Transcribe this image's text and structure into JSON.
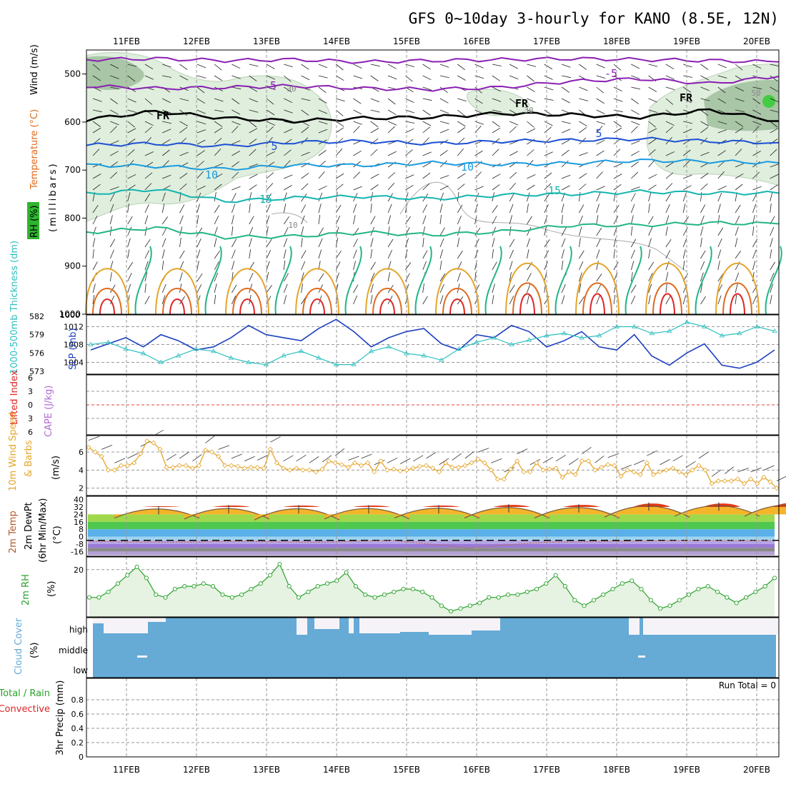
{
  "title": "GFS 0~10day 3-hourly for KANO (8.5E, 12N)",
  "chart_data": {
    "type": "meteogram",
    "days": [
      "11FEB",
      "12FEB",
      "13FEB",
      "14FEB",
      "15FEB",
      "16FEB",
      "17FEB",
      "18FEB",
      "19FEB",
      "20FEB"
    ],
    "colors": {
      "purple": "#8a1fb3",
      "black": "#000000",
      "blue": "#1c4fd6",
      "sky": "#1a9be0",
      "teal": "#13b5b0",
      "green": "#22b585",
      "orange": "#e5a52a",
      "darkorange": "#e06b1e",
      "red": "#e02424",
      "rhfill": "#dfeedd",
      "rhdark": "#a9c6a6",
      "cloud": "#66aad6",
      "speed": "#e5a52a",
      "thick": "#1c3fbf",
      "slp": "#2fbfbf",
      "rh2m": "#2aa12a"
    },
    "upper_panel": {
      "ylabel_wind": "Wind (m/s)",
      "ylabel_temp": "Temperature (°C)",
      "ylabel_rh": "RH (%)",
      "ylabel_mb": "(millibars)",
      "pressure_ticks": [
        500,
        600,
        700,
        800,
        900,
        1000
      ],
      "contour_labels": [
        {
          "text": "-5",
          "color": "purple"
        },
        {
          "text": "-5",
          "color": "purple"
        },
        {
          "text": "30",
          "color": "gray"
        },
        {
          "text": "FR",
          "color": "black"
        },
        {
          "text": "FR",
          "color": "black"
        },
        {
          "text": "FR",
          "color": "black"
        },
        {
          "text": "30",
          "color": "gray"
        },
        {
          "text": "50",
          "color": "gray"
        },
        {
          "text": "5",
          "color": "blue"
        },
        {
          "text": "5",
          "color": "blue"
        },
        {
          "text": "10",
          "color": "sky"
        },
        {
          "text": "10",
          "color": "sky"
        },
        {
          "text": "15",
          "color": "teal"
        },
        {
          "text": "15",
          "color": "teal"
        },
        {
          "text": "10",
          "color": "gray"
        }
      ],
      "isotherms": [
        {
          "name": "-5",
          "color": "purple",
          "mb": [
            470,
            468,
            472,
            470,
            475,
            472,
            470,
            468,
            470,
            472,
            475
          ]
        },
        {
          "name": "-5b",
          "color": "purple",
          "mb": [
            525,
            530,
            528,
            525,
            530,
            532,
            528,
            515,
            510,
            520,
            505
          ]
        },
        {
          "name": "FR",
          "color": "black",
          "mb": [
            595,
            578,
            592,
            598,
            592,
            590,
            582,
            585,
            590,
            575,
            598
          ]
        },
        {
          "name": "5",
          "color": "blue",
          "mb": [
            648,
            645,
            650,
            642,
            640,
            645,
            640,
            638,
            635,
            640,
            643
          ]
        },
        {
          "name": "10",
          "color": "sky",
          "mb": [
            690,
            692,
            698,
            690,
            690,
            685,
            688,
            686,
            680,
            682,
            685
          ]
        },
        {
          "name": "15",
          "color": "teal",
          "mb": [
            750,
            740,
            765,
            758,
            755,
            760,
            752,
            750,
            745,
            748,
            748
          ]
        },
        {
          "name": "20",
          "color": "green",
          "mb": [
            830,
            820,
            840,
            838,
            830,
            835,
            828,
            815,
            815,
            810,
            812
          ]
        }
      ]
    },
    "thickness_panel": {
      "ylabel_thick": "1000-500mb Thickness (dm)",
      "ylabel_slp": "SLP (mb)",
      "thick_ticks": [
        582,
        579,
        576,
        573
      ],
      "slp_ticks": [
        1012,
        1008,
        1004
      ],
      "thickness": [
        576.5,
        577.5,
        578.5,
        577,
        579,
        578,
        576.5,
        577,
        578.5,
        580.5,
        579,
        578.5,
        578,
        580,
        581.5,
        579.5,
        577,
        578.5,
        579.5,
        580,
        577.5,
        576.5,
        579,
        578.5,
        580.5,
        579.5,
        577,
        578,
        579.5,
        577,
        576.5,
        579,
        575.5,
        574,
        576,
        577.5,
        574,
        573.5,
        574.5,
        576.5
      ],
      "slp": [
        1008,
        1008.5,
        1007,
        1006,
        1004,
        1005.5,
        1007,
        1006.5,
        1005,
        1004,
        1003.5,
        1005.5,
        1006.5,
        1005,
        1003.5,
        1003.5,
        1006.5,
        1007.5,
        1006,
        1005.5,
        1004.5,
        1007,
        1008.5,
        1009.5,
        1008,
        1009,
        1010,
        1010.5,
        1009.5,
        1010,
        1012,
        1012,
        1010.5,
        1011,
        1013,
        1012,
        1010,
        1010.5,
        1012,
        1011
      ]
    },
    "cape_panel": {
      "ylabel_li": "Lifted Index",
      "ylabel_cape": "CAPE (J/kg)",
      "ticks": [
        "6",
        "3",
        "0",
        "3",
        "6"
      ]
    },
    "wind_panel": {
      "ylabel_speed": "10m Wind Speed",
      "ylabel_barbs": "& Barbs",
      "ylabel_units": "(m/s)",
      "ticks": [
        2,
        4,
        6
      ],
      "speed": [
        6.5,
        6.0,
        5.5,
        4.0,
        4.0,
        4.5,
        4.5,
        4.8,
        5.8,
        7.2,
        7.0,
        6.3,
        4.3,
        4.3,
        4.5,
        4.5,
        4.2,
        4.5,
        6.2,
        6.0,
        5.5,
        4.5,
        4.5,
        4.4,
        4.2,
        4.3,
        4.3,
        4.2,
        6.3,
        4.8,
        4.2,
        4.0,
        4.2,
        4.0,
        4.0,
        3.8,
        4.1,
        5.0,
        4.8,
        4.6,
        4.3,
        4.8,
        4.5,
        4.8,
        3.8,
        5.0,
        4.0,
        4.1,
        3.9,
        4.0,
        4.2,
        4.4,
        4.5,
        4.2,
        3.8,
        4.8,
        4.3,
        4.3,
        4.5,
        4.8,
        5.2,
        4.8,
        4.0,
        3.0,
        3.0,
        4.1,
        5.0,
        3.8,
        3.8,
        4.8,
        4.0,
        4.1,
        4.2,
        3.2,
        3.8,
        3.5,
        5.0,
        5.0,
        4.0,
        4.3,
        4.6,
        4.5,
        3.3,
        4.0,
        3.8,
        3.5,
        4.8,
        3.5,
        3.8,
        4.0,
        4.2,
        3.8,
        3.5,
        4.0,
        4.5,
        4.0,
        2.5,
        2.8,
        2.8,
        2.8,
        3.0,
        2.5,
        3.0,
        2.5,
        3.2,
        2.7,
        2.0
      ]
    },
    "temp_panel": {
      "ylabel_temp": "2m Temp",
      "ylabel_dew": "2m DewPt",
      "ylabel_minmax": "(6hr Min/Max)",
      "ylabel_units": "(°C)",
      "ticks": [
        "40",
        "32",
        "24",
        "16",
        "8",
        "0",
        "-8",
        "-16"
      ],
      "temp_max": [
        33,
        34,
        34,
        34,
        34,
        35,
        35,
        37,
        37,
        38
      ],
      "temp_min": [
        20,
        19,
        18,
        19,
        20,
        20,
        20,
        21,
        22,
        22
      ],
      "dewpt": [
        -5,
        -6,
        -5,
        -6,
        -4,
        -12,
        -6,
        -5,
        -4,
        -4
      ]
    },
    "rh_panel": {
      "ylabel_rh": "2m RH",
      "ylabel_units": "(%)",
      "ticks": [
        20
      ],
      "rh": [
        10,
        10,
        12,
        15,
        18,
        21,
        17,
        11,
        10,
        13,
        14,
        14,
        15,
        14,
        11,
        10,
        11,
        13,
        15,
        18,
        22,
        14,
        10,
        12,
        14,
        15,
        16,
        19,
        14,
        11,
        10,
        11,
        12,
        13,
        13,
        12,
        10,
        7,
        5,
        6,
        7,
        8,
        10,
        10,
        11,
        11,
        12,
        13,
        15,
        18,
        14,
        9,
        7,
        9,
        11,
        13,
        15,
        16,
        13,
        9,
        6,
        7,
        9,
        11,
        13,
        14,
        12,
        10,
        8,
        10,
        12,
        14,
        17
      ]
    },
    "cloud_panel": {
      "ylabel": "Cloud Cover",
      "ylabel_units": "(%)",
      "layers": [
        "high",
        "middle",
        "low"
      ]
    },
    "precip_panel": {
      "ylabel_total": "Total / Rain",
      "ylabel_conv": "Convective",
      "ylabel_precip": "3hr Precip (mm)",
      "ticks": [
        "0.8",
        "0.6",
        "0.4",
        "0.2",
        "0"
      ],
      "run_total_label": "Run Total = 0"
    }
  }
}
